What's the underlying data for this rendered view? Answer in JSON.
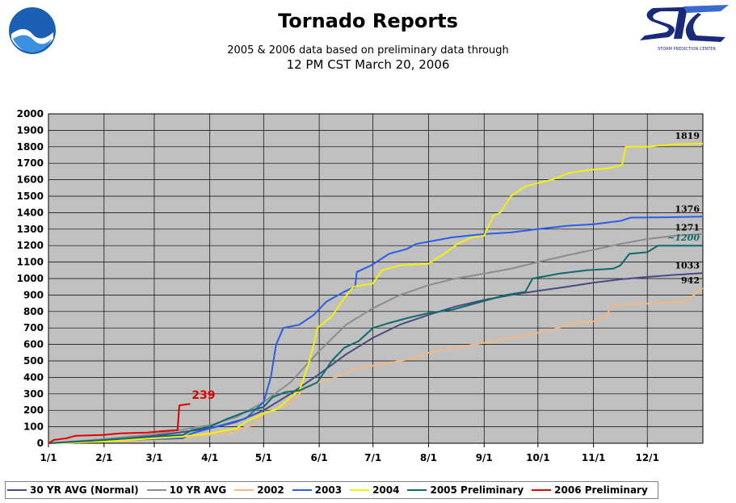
{
  "header": {
    "title": "Tornado Reports",
    "subtitle_line1": "2005 & 2006 data based on preliminary data through",
    "subtitle_line2": "12 PM CST March 20, 2006",
    "left_logo_icon": "noaa-logo-icon",
    "right_logo_icon": "spc-logo-icon",
    "right_logo_text": "STORM PREDICTION CENTER"
  },
  "chart_data": {
    "type": "line",
    "title": "Tornado Reports",
    "xlabel": "",
    "ylabel": "",
    "xlim": [
      0,
      365
    ],
    "ylim": [
      0,
      2000
    ],
    "y_ticks": [
      0,
      100,
      200,
      300,
      400,
      500,
      600,
      700,
      800,
      900,
      1000,
      1100,
      1200,
      1300,
      1400,
      1500,
      1600,
      1700,
      1800,
      1900,
      2000
    ],
    "x_tick_labels": [
      "1/1",
      "2/1",
      "3/1",
      "4/1",
      "5/1",
      "6/1",
      "7/1",
      "8/1",
      "9/1",
      "10/1",
      "11/1",
      "12/1"
    ],
    "x_tick_days": [
      0,
      31,
      59,
      90,
      120,
      151,
      181,
      212,
      243,
      273,
      304,
      334
    ],
    "grid": true,
    "plot_background": "#c0c0c0",
    "legend_position": "bottom",
    "annotations": [
      {
        "text": "1819",
        "series": "2004",
        "color": "#000000"
      },
      {
        "text": "1376",
        "series": "2003",
        "color": "#000000"
      },
      {
        "text": "1271",
        "series": "10 YR AVG",
        "color": "#000000"
      },
      {
        "text": "~1200",
        "series": "2005 Preliminary",
        "color": "#0e6b6b"
      },
      {
        "text": "1033",
        "series": "30 YR AVG (Normal)",
        "color": "#000000"
      },
      {
        "text": "942",
        "series": "2002",
        "color": "#000000"
      },
      {
        "text": "239",
        "series": "2006 Preliminary",
        "color": "#e00000"
      }
    ],
    "series": [
      {
        "name": "30 YR AVG (Normal)",
        "color": "#4a4a80",
        "points": [
          [
            0,
            0
          ],
          [
            31,
            20
          ],
          [
            59,
            45
          ],
          [
            90,
            90
          ],
          [
            105,
            130
          ],
          [
            120,
            200
          ],
          [
            135,
            300
          ],
          [
            151,
            420
          ],
          [
            166,
            540
          ],
          [
            181,
            640
          ],
          [
            196,
            720
          ],
          [
            212,
            780
          ],
          [
            227,
            830
          ],
          [
            243,
            870
          ],
          [
            258,
            900
          ],
          [
            273,
            925
          ],
          [
            289,
            950
          ],
          [
            304,
            975
          ],
          [
            319,
            995
          ],
          [
            334,
            1010
          ],
          [
            349,
            1022
          ],
          [
            365,
            1033
          ]
        ]
      },
      {
        "name": "10 YR AVG",
        "color": "#8c8c8c",
        "points": [
          [
            0,
            0
          ],
          [
            31,
            25
          ],
          [
            59,
            55
          ],
          [
            90,
            110
          ],
          [
            105,
            160
          ],
          [
            120,
            250
          ],
          [
            135,
            370
          ],
          [
            151,
            560
          ],
          [
            166,
            720
          ],
          [
            181,
            820
          ],
          [
            196,
            900
          ],
          [
            212,
            960
          ],
          [
            227,
            1000
          ],
          [
            243,
            1030
          ],
          [
            258,
            1060
          ],
          [
            273,
            1100
          ],
          [
            289,
            1140
          ],
          [
            304,
            1175
          ],
          [
            319,
            1210
          ],
          [
            334,
            1240
          ],
          [
            349,
            1260
          ],
          [
            365,
            1271
          ]
        ]
      },
      {
        "name": "2002",
        "color": "#f4b97e",
        "points": [
          [
            0,
            0
          ],
          [
            31,
            10
          ],
          [
            59,
            20
          ],
          [
            75,
            25
          ],
          [
            80,
            40
          ],
          [
            90,
            50
          ],
          [
            100,
            60
          ],
          [
            105,
            75
          ],
          [
            110,
            100
          ],
          [
            115,
            110
          ],
          [
            120,
            180
          ],
          [
            125,
            200
          ],
          [
            135,
            240
          ],
          [
            140,
            300
          ],
          [
            145,
            350
          ],
          [
            151,
            370
          ],
          [
            160,
            400
          ],
          [
            170,
            450
          ],
          [
            181,
            470
          ],
          [
            196,
            500
          ],
          [
            205,
            520
          ],
          [
            212,
            550
          ],
          [
            227,
            580
          ],
          [
            243,
            610
          ],
          [
            258,
            640
          ],
          [
            273,
            670
          ],
          [
            281,
            690
          ],
          [
            290,
            720
          ],
          [
            304,
            740
          ],
          [
            310,
            760
          ],
          [
            315,
            840
          ],
          [
            325,
            845
          ],
          [
            340,
            850
          ],
          [
            355,
            860
          ],
          [
            365,
            942
          ]
        ]
      },
      {
        "name": "2003",
        "color": "#2a5ee8",
        "points": [
          [
            0,
            0
          ],
          [
            31,
            15
          ],
          [
            59,
            25
          ],
          [
            75,
            30
          ],
          [
            80,
            60
          ],
          [
            90,
            90
          ],
          [
            100,
            120
          ],
          [
            110,
            150
          ],
          [
            120,
            250
          ],
          [
            124,
            400
          ],
          [
            127,
            600
          ],
          [
            131,
            700
          ],
          [
            140,
            720
          ],
          [
            148,
            780
          ],
          [
            155,
            860
          ],
          [
            165,
            920
          ],
          [
            171,
            950
          ],
          [
            172,
            1040
          ],
          [
            180,
            1080
          ],
          [
            190,
            1150
          ],
          [
            200,
            1180
          ],
          [
            205,
            1210
          ],
          [
            215,
            1230
          ],
          [
            225,
            1250
          ],
          [
            243,
            1270
          ],
          [
            258,
            1280
          ],
          [
            273,
            1300
          ],
          [
            289,
            1320
          ],
          [
            304,
            1330
          ],
          [
            319,
            1350
          ],
          [
            325,
            1370
          ],
          [
            345,
            1372
          ],
          [
            365,
            1376
          ]
        ]
      },
      {
        "name": "2004",
        "color": "#f2f20a",
        "points": [
          [
            0,
            0
          ],
          [
            31,
            10
          ],
          [
            59,
            30
          ],
          [
            75,
            40
          ],
          [
            90,
            60
          ],
          [
            100,
            80
          ],
          [
            105,
            90
          ],
          [
            110,
            130
          ],
          [
            120,
            180
          ],
          [
            128,
            210
          ],
          [
            135,
            280
          ],
          [
            140,
            320
          ],
          [
            145,
            480
          ],
          [
            148,
            600
          ],
          [
            150,
            700
          ],
          [
            158,
            770
          ],
          [
            165,
            880
          ],
          [
            170,
            950
          ],
          [
            181,
            970
          ],
          [
            186,
            1050
          ],
          [
            196,
            1080
          ],
          [
            212,
            1090
          ],
          [
            222,
            1160
          ],
          [
            228,
            1210
          ],
          [
            236,
            1250
          ],
          [
            243,
            1260
          ],
          [
            248,
            1380
          ],
          [
            252,
            1400
          ],
          [
            258,
            1500
          ],
          [
            266,
            1560
          ],
          [
            273,
            1580
          ],
          [
            281,
            1600
          ],
          [
            290,
            1640
          ],
          [
            302,
            1660
          ],
          [
            313,
            1670
          ],
          [
            320,
            1690
          ],
          [
            322,
            1800
          ],
          [
            334,
            1800
          ],
          [
            349,
            1815
          ],
          [
            365,
            1819
          ]
        ]
      },
      {
        "name": "2005 Preliminary",
        "color": "#0e6b6b",
        "points": [
          [
            0,
            0
          ],
          [
            31,
            20
          ],
          [
            59,
            40
          ],
          [
            75,
            50
          ],
          [
            80,
            80
          ],
          [
            90,
            100
          ],
          [
            100,
            150
          ],
          [
            110,
            190
          ],
          [
            120,
            220
          ],
          [
            125,
            280
          ],
          [
            132,
            310
          ],
          [
            140,
            320
          ],
          [
            150,
            370
          ],
          [
            158,
            500
          ],
          [
            165,
            580
          ],
          [
            173,
            620
          ],
          [
            181,
            700
          ],
          [
            190,
            730
          ],
          [
            200,
            760
          ],
          [
            212,
            790
          ],
          [
            225,
            810
          ],
          [
            235,
            840
          ],
          [
            245,
            870
          ],
          [
            255,
            900
          ],
          [
            266,
            920
          ],
          [
            270,
            1000
          ],
          [
            285,
            1030
          ],
          [
            300,
            1050
          ],
          [
            315,
            1060
          ],
          [
            319,
            1080
          ],
          [
            324,
            1150
          ],
          [
            334,
            1160
          ],
          [
            340,
            1200
          ],
          [
            365,
            1200
          ]
        ]
      },
      {
        "name": "2006 Preliminary",
        "color": "#e00000",
        "points": [
          [
            0,
            0
          ],
          [
            3,
            20
          ],
          [
            10,
            30
          ],
          [
            15,
            45
          ],
          [
            30,
            50
          ],
          [
            40,
            60
          ],
          [
            55,
            65
          ],
          [
            65,
            75
          ],
          [
            72,
            80
          ],
          [
            73,
            230
          ],
          [
            79,
            239
          ]
        ]
      }
    ]
  }
}
